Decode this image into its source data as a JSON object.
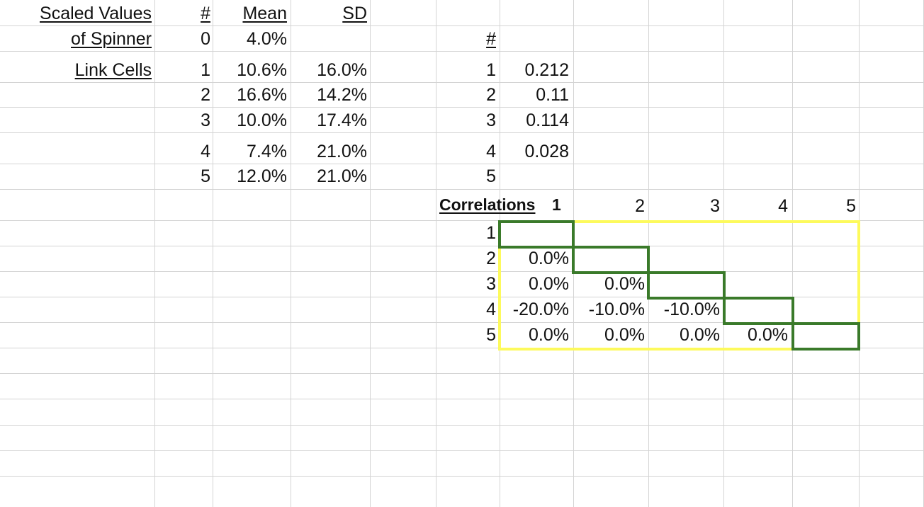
{
  "left_block": {
    "title_line1": "Scaled Values",
    "title_line2": "of Spinner",
    "link_label": "Link Cells",
    "headers": {
      "num": "#",
      "mean": "Mean",
      "sd": "SD"
    },
    "row0": {
      "num": "0",
      "mean": "4.0%"
    },
    "rows": [
      {
        "num": "1",
        "mean": "10.6%",
        "sd": "16.0%"
      },
      {
        "num": "2",
        "mean": "16.6%",
        "sd": "14.2%"
      },
      {
        "num": "3",
        "mean": "10.0%",
        "sd": "17.4%"
      },
      {
        "num": "4",
        "mean": "7.4%",
        "sd": "21.0%"
      },
      {
        "num": "5",
        "mean": "12.0%",
        "sd": "21.0%"
      }
    ]
  },
  "weights_block": {
    "header": "#",
    "rows": [
      {
        "num": "1",
        "value": "0.212"
      },
      {
        "num": "2",
        "value": "0.11"
      },
      {
        "num": "3",
        "value": "0.114"
      },
      {
        "num": "4",
        "value": "0.028"
      },
      {
        "num": "5",
        "value": ""
      }
    ]
  },
  "correlations": {
    "label": "Correlations",
    "col_headers": [
      "1",
      "2",
      "3",
      "4",
      "5"
    ],
    "row_headers": [
      "1",
      "2",
      "3",
      "4",
      "5"
    ],
    "cells": [
      [
        "",
        "",
        "",
        "",
        ""
      ],
      [
        "0.0%",
        "",
        "",
        "",
        ""
      ],
      [
        "0.0%",
        "0.0%",
        "",
        "",
        ""
      ],
      [
        "-20.0%",
        "-10.0%",
        "-10.0%",
        "",
        ""
      ],
      [
        "0.0%",
        "0.0%",
        "0.0%",
        "0.0%",
        ""
      ]
    ],
    "highlight_colors": {
      "outline": "#fdfa5c",
      "diagonal": "#3a7a2a"
    }
  }
}
